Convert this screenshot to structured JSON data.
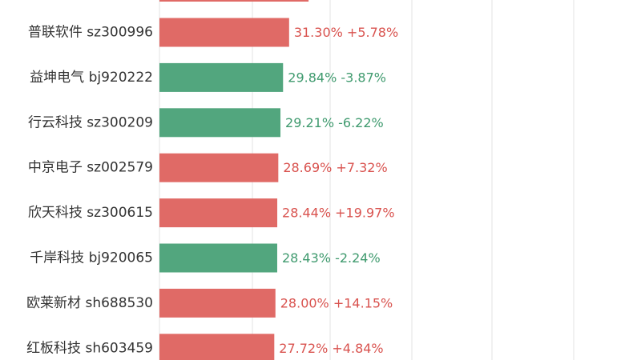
{
  "colors": {
    "up": "#e06a66",
    "down": "#52a67e",
    "up_text": "#d9534f",
    "down_text": "#3f9a6e",
    "grid": "#e3e3e3",
    "label": "#333333"
  },
  "chart_data": {
    "type": "bar",
    "orientation": "horizontal",
    "grid": true,
    "xlim": [
      0,
      65
    ],
    "top_bar_partial": {
      "value": 36.0,
      "color": "up"
    },
    "rows": [
      {
        "name": "普联软件",
        "code": "sz300996",
        "value": 31.3,
        "value_label": "31.30%",
        "change_label": "+5.78%",
        "direction": "up"
      },
      {
        "name": "益坤电气",
        "code": "bj920222",
        "value": 29.84,
        "value_label": "29.84%",
        "change_label": "-3.87%",
        "direction": "down"
      },
      {
        "name": "行云科技",
        "code": "sz300209",
        "value": 29.21,
        "value_label": "29.21%",
        "change_label": "-6.22%",
        "direction": "down"
      },
      {
        "name": "中京电子",
        "code": "sz002579",
        "value": 28.69,
        "value_label": "28.69%",
        "change_label": "+7.32%",
        "direction": "up"
      },
      {
        "name": "欣天科技",
        "code": "sz300615",
        "value": 28.44,
        "value_label": "28.44%",
        "change_label": "+19.97%",
        "direction": "up"
      },
      {
        "name": "千岸科技",
        "code": "bj920065",
        "value": 28.43,
        "value_label": "28.43%",
        "change_label": "-2.24%",
        "direction": "down"
      },
      {
        "name": "欧莱新材",
        "code": "sh688530",
        "value": 28.0,
        "value_label": "28.00%",
        "change_label": "+14.15%",
        "direction": "up"
      },
      {
        "name": "红板科技",
        "code": "sh603459",
        "value": 27.72,
        "value_label": "27.72%",
        "change_label": "+4.84%",
        "direction": "up"
      }
    ]
  }
}
